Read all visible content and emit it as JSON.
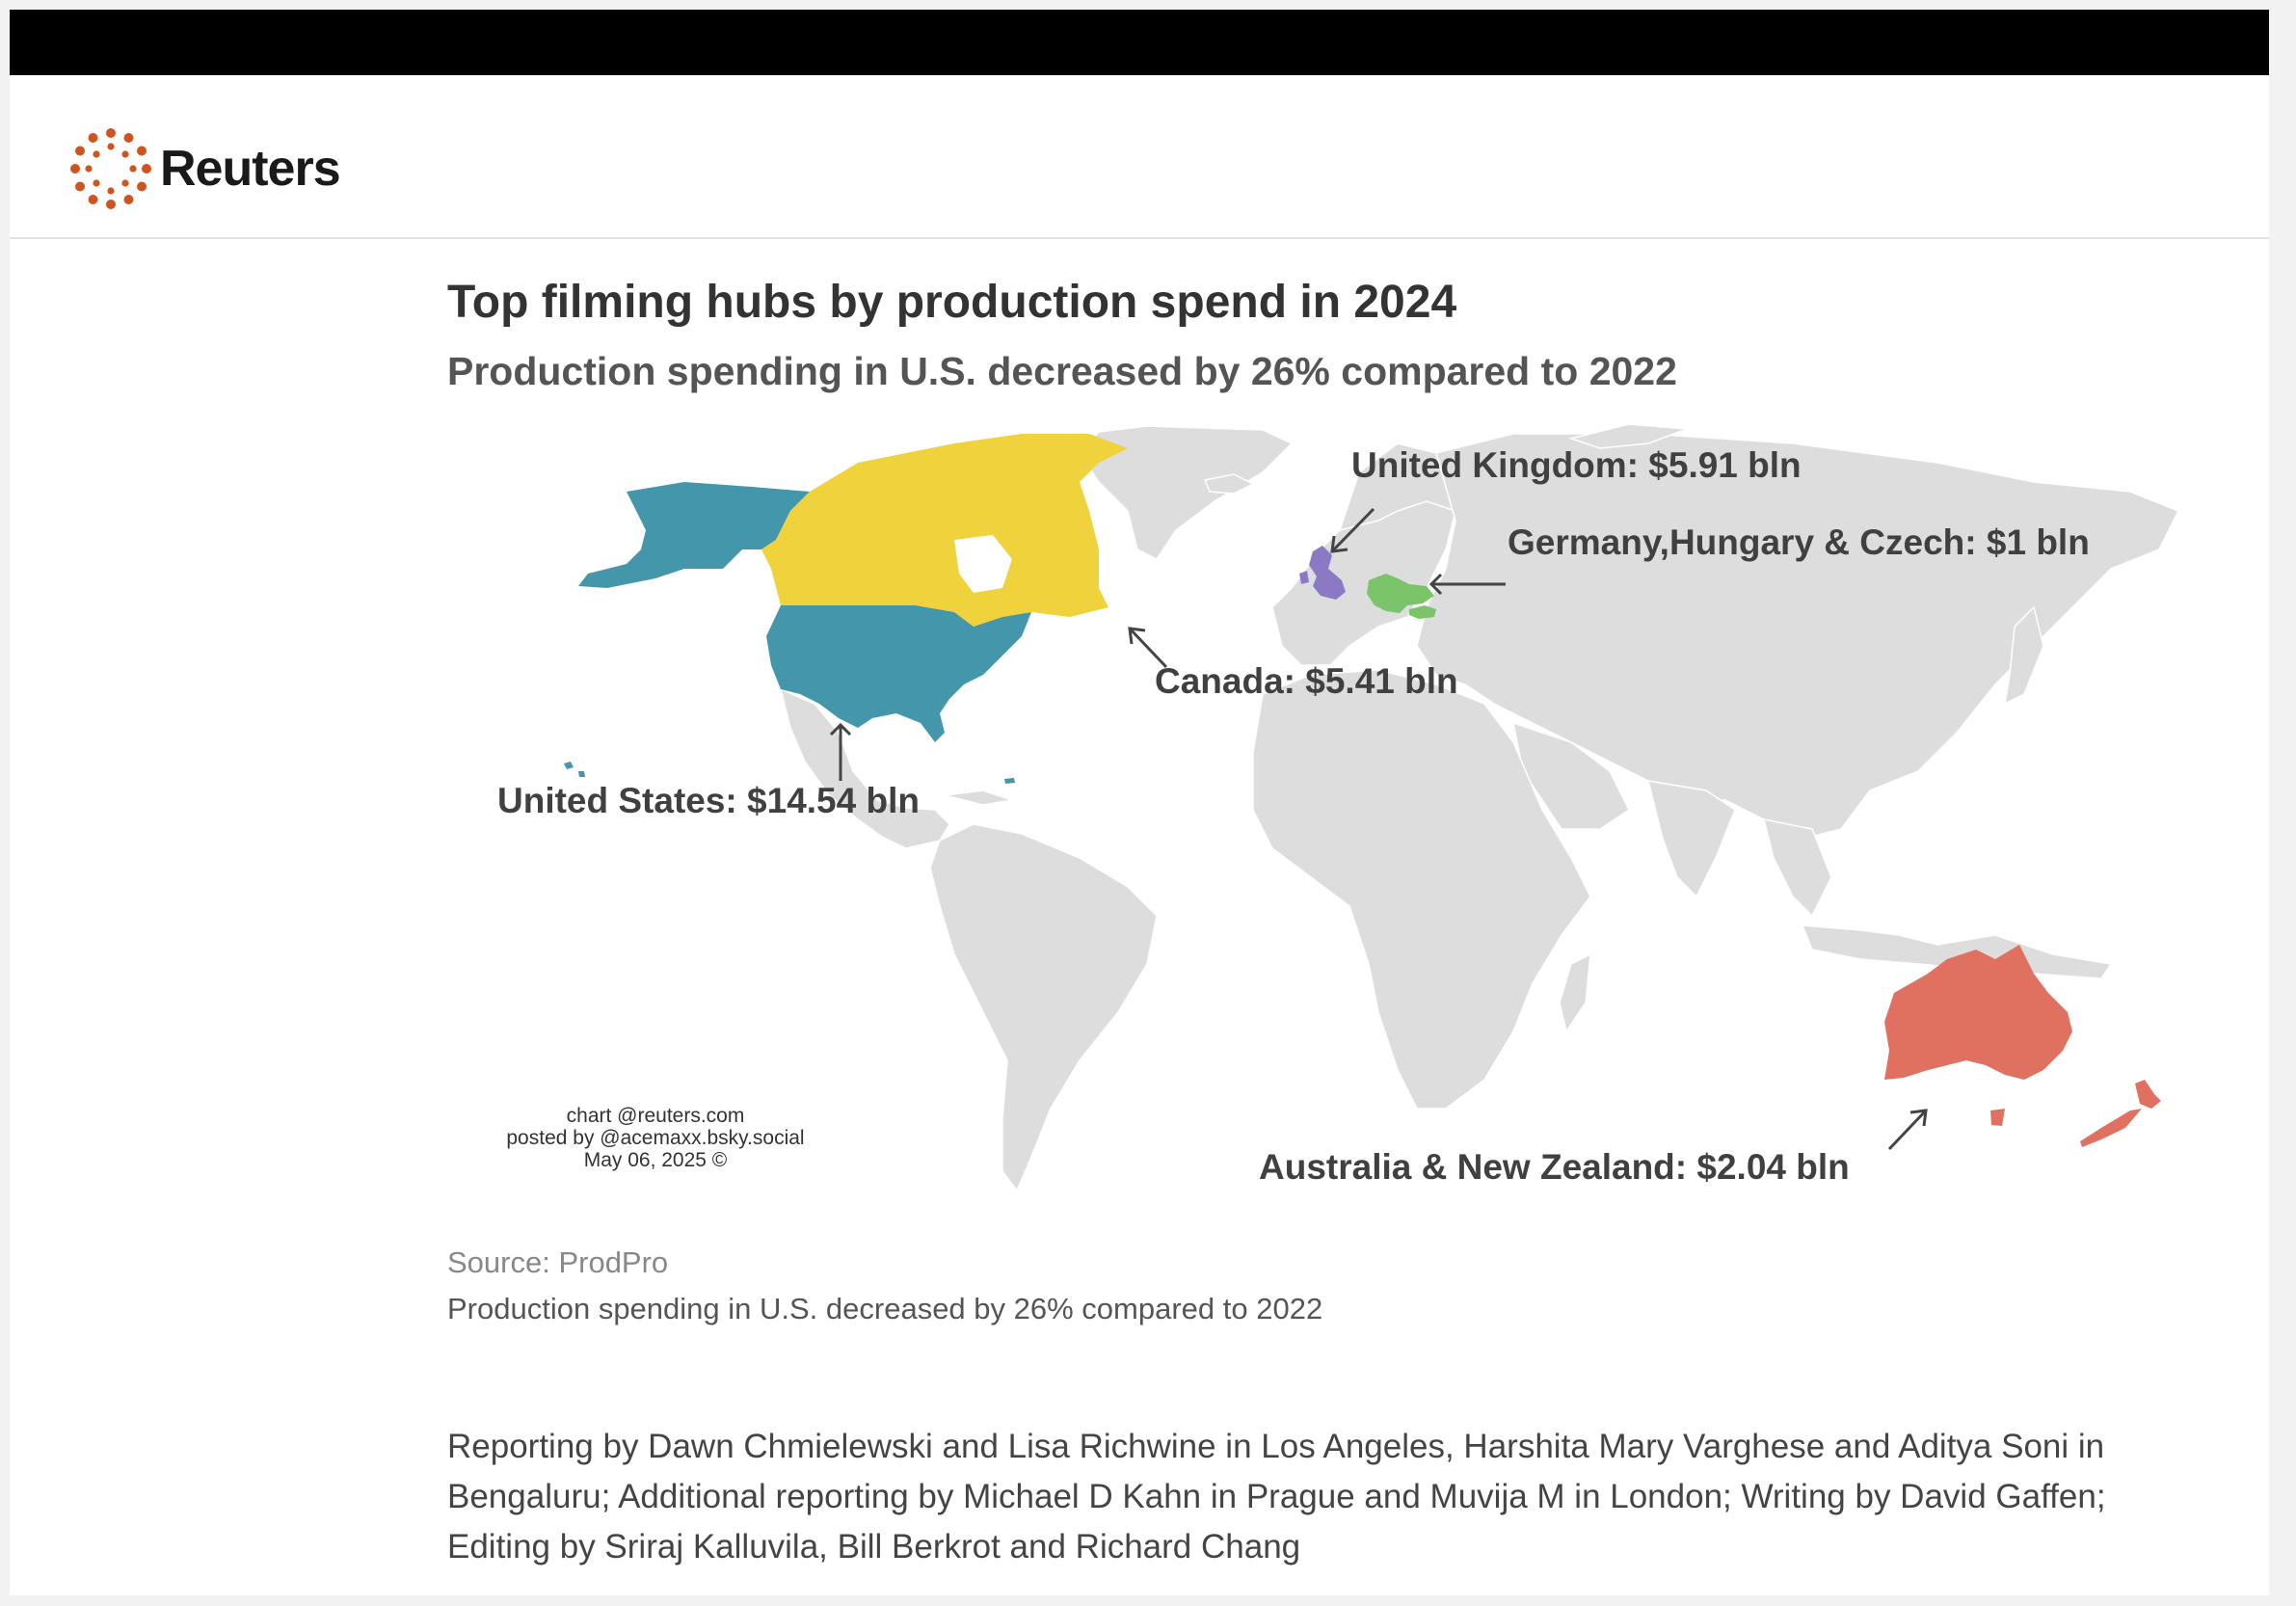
{
  "brand": {
    "name": "Reuters",
    "accent": "#d0541e"
  },
  "chart": {
    "title": "Top filming hubs by production spend in 2024",
    "subtitle": "Production spending in U.S. decreased by 26% compared to 2022"
  },
  "map": {
    "base_color": "#dddddd",
    "regions": [
      {
        "id": "us",
        "label": "United States: $14.54 bln",
        "name": "United States",
        "value_bln": 14.54,
        "color": "#4497ab"
      },
      {
        "id": "canada",
        "label": "Canada: $5.41 bln",
        "name": "Canada",
        "value_bln": 5.41,
        "color": "#efd23c"
      },
      {
        "id": "uk",
        "label": "United Kingdom: $5.91 bln",
        "name": "United Kingdom",
        "value_bln": 5.91,
        "color": "#8c79c6"
      },
      {
        "id": "central-europe",
        "label": "Germany,Hungary & Czech: $1 bln",
        "name": "Germany,Hungary & Czech",
        "value_bln": 1,
        "color": "#7cc46a"
      },
      {
        "id": "anz",
        "label": "Australia & New Zealand: $2.04 bln",
        "name": "Australia & New Zealand",
        "value_bln": 2.04,
        "color": "#e0705f"
      }
    ]
  },
  "credit": {
    "line1": "chart @reuters.com",
    "line2": "posted by @acemaxx.bsky.social",
    "line3": "May 06, 2025 ©"
  },
  "source": "Source: ProdPro",
  "caption": "Production spending in U.S. decreased by 26% compared to 2022",
  "reporting": "Reporting by Dawn Chmielewski and Lisa Richwine in Los Angeles, Harshita Mary Varghese and Aditya Soni in Bengaluru; Additional reporting by Michael D Kahn in Prague and Muvija M in London; Writing by David Gaffen; Editing by Sriraj Kalluvila, Bill Berkrot and Richard Chang"
}
